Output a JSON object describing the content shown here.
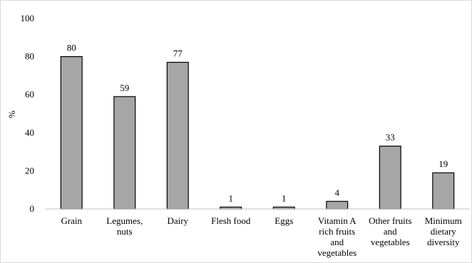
{
  "chart_data": {
    "type": "bar",
    "categories": [
      [
        "Grain"
      ],
      [
        "Legumes,",
        "nuts"
      ],
      [
        "Dairy"
      ],
      [
        "Flesh food"
      ],
      [
        "Eggs"
      ],
      [
        "Vitamin A",
        "rich fruits",
        "and",
        "vegetables"
      ],
      [
        "Other fruits",
        "and",
        "vegetables"
      ],
      [
        "Minimum",
        "dietary",
        "diversity"
      ]
    ],
    "values": [
      80,
      59,
      77,
      1,
      1,
      4,
      33,
      19
    ],
    "data_labels": [
      "80",
      "59",
      "77",
      "1",
      "1",
      "4",
      "33",
      "19"
    ],
    "ylabel": "%",
    "ylim": [
      0,
      100
    ],
    "yticks": [
      0,
      20,
      40,
      60,
      80,
      100
    ],
    "ytick_labels": [
      "0",
      "20",
      "40",
      "60",
      "80",
      "100"
    ],
    "grid": false,
    "bar_color": "#a6a6a6",
    "bar_edge_color": "#000000"
  }
}
